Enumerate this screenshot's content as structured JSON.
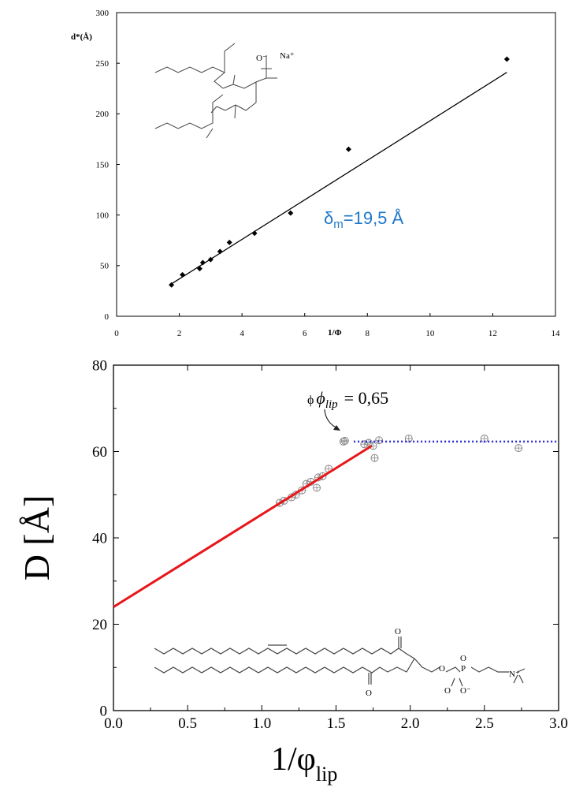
{
  "chart_data": [
    {
      "type": "scatter",
      "title": "",
      "xlabel": "1/Φ",
      "ylabel": "d*(Å)",
      "xlim": [
        0,
        14
      ],
      "ylim": [
        0,
        300
      ],
      "xticks": [
        "0",
        "2",
        "4",
        "6",
        "8",
        "10",
        "12",
        "14"
      ],
      "yticks": [
        "0",
        "50",
        "100",
        "150",
        "200",
        "250",
        "300"
      ],
      "grid": false,
      "annotation": {
        "text": "δm=19,5 Å",
        "prefix": "δ",
        "sub": "m",
        "suffix": "=19,5 Å",
        "color": "#1f78c8"
      },
      "series": [
        {
          "kind": "points",
          "marker": "filled-diamond",
          "x": [
            1.75,
            2.1,
            2.65,
            2.75,
            3.0,
            3.3,
            3.6,
            4.4,
            5.55,
            7.4,
            12.45
          ],
          "y": [
            31,
            41,
            47,
            53,
            56,
            64,
            73,
            82,
            102,
            165,
            254
          ]
        },
        {
          "kind": "fit-line",
          "x": [
            1.7,
            12.45
          ],
          "y": [
            31,
            241
          ]
        }
      ],
      "structure_labels": [
        "O⁻",
        "Na⁺"
      ]
    },
    {
      "type": "scatter",
      "title": "",
      "xlabel": "1/φ",
      "xlabel_sub": "lip",
      "ylabel": "D [Å]",
      "xlim": [
        0,
        3
      ],
      "ylim": [
        0,
        80
      ],
      "xticks": [
        "0.0",
        "0.5",
        "1.0",
        "1.5",
        "2.0",
        "2.5",
        "3.0"
      ],
      "yticks": [
        "0",
        "20",
        "40",
        "60",
        "80"
      ],
      "grid": false,
      "annotation": {
        "text": "ϕ ϕlip = 0,65",
        "symbol": "ϕ",
        "phi": "ϕ",
        "sub": "lip",
        "value": "= 0,65"
      },
      "series": [
        {
          "kind": "points",
          "marker": "open-circle",
          "x": [
            1.55,
            1.56,
            1.69,
            1.72,
            1.75,
            1.76,
            1.79,
            1.99,
            2.5,
            2.73,
            1.12,
            1.15,
            1.2,
            1.23,
            1.27,
            1.3,
            1.33,
            1.37,
            1.38,
            1.41,
            1.45
          ],
          "y": [
            62.3,
            62.5,
            61.7,
            62.0,
            61.3,
            58.5,
            62.6,
            63.0,
            63.0,
            60.8,
            48.1,
            48.6,
            49.4,
            50.0,
            51.0,
            52.5,
            53.0,
            51.6,
            54.0,
            54.3,
            56.0
          ]
        },
        {
          "kind": "fit-line",
          "color": "#e8161b",
          "x": [
            0,
            1.74
          ],
          "y": [
            24,
            61.3
          ]
        },
        {
          "kind": "plateau-line",
          "color": "#2a2ad8",
          "style": "dotted",
          "x": [
            1.62,
            3.0
          ],
          "y": [
            62.3,
            62.3
          ]
        }
      ],
      "structure_labels": [
        "O",
        "O",
        "O",
        "P",
        "O",
        "O",
        "O⁻",
        "N⁺"
      ]
    }
  ]
}
